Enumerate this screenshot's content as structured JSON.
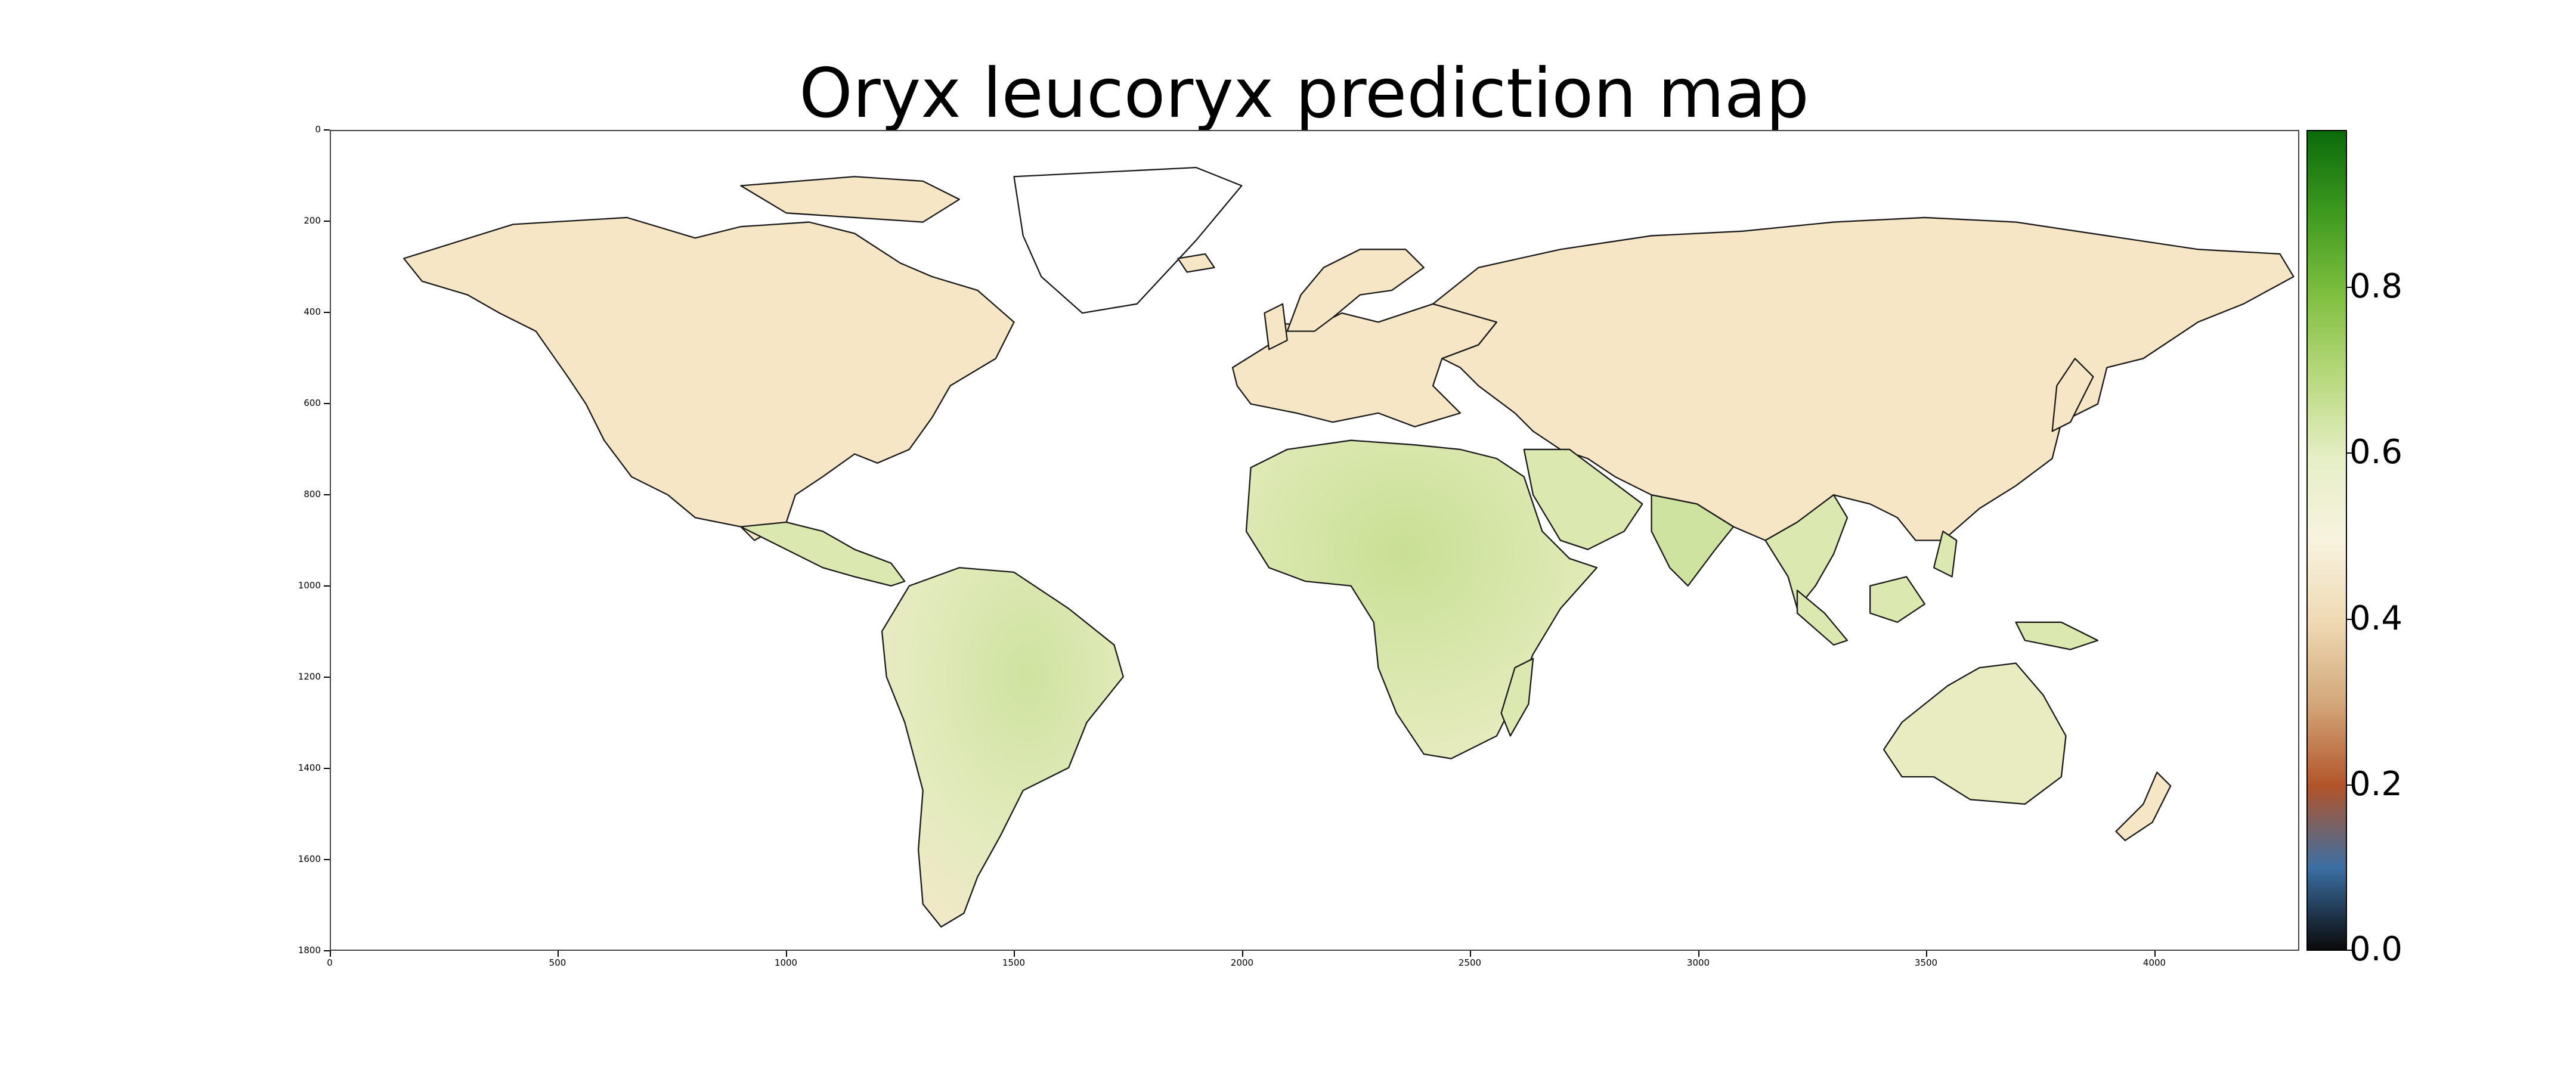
{
  "title": "Oryx leucoryx prediction map",
  "map": {
    "y_ticks": [
      "0",
      "200",
      "400",
      "600",
      "800",
      "1000",
      "1200",
      "1400",
      "1600",
      "1800"
    ],
    "x_ticks": [
      "0",
      "500",
      "1000",
      "1500",
      "2000",
      "2500",
      "3000",
      "3500",
      "4000"
    ],
    "colors": {
      "ocean": "#ffffff",
      "land_low": "#f6e6c6",
      "land_mid": "#dbe8b0",
      "land_high": "#bfdc8a",
      "coastline": "#1a1a1a"
    }
  },
  "colorbar": {
    "ticks": [
      "0.0",
      "0.2",
      "0.4",
      "0.6",
      "0.8"
    ],
    "range": [
      0.0,
      0.98
    ],
    "colormap": [
      "#0a0a0a",
      "#3b6fa3",
      "#b3542a",
      "#d2a77a",
      "#efd9b3",
      "#f8f3df",
      "#e6efc6",
      "#b8d97d",
      "#7fbf3f",
      "#3e9a1f",
      "#0b6b0b"
    ]
  }
}
